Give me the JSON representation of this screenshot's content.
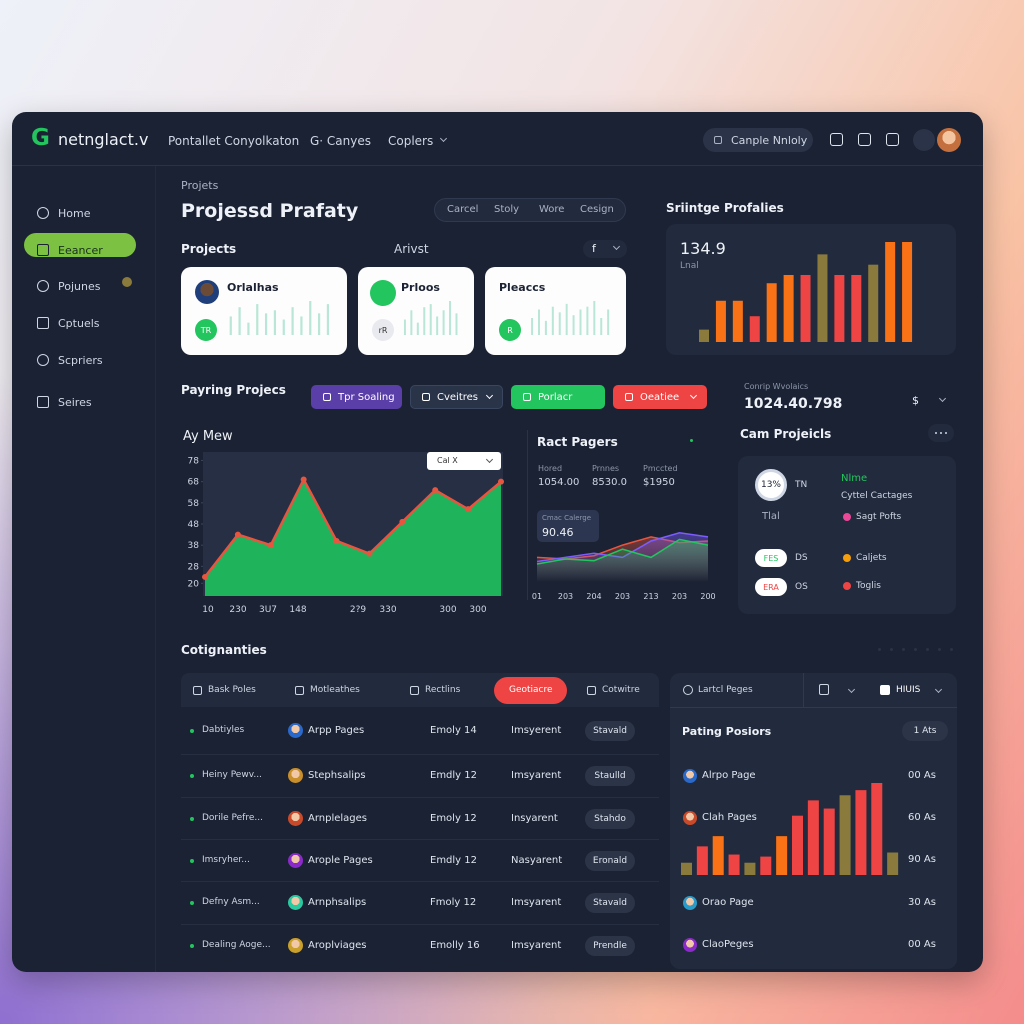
{
  "topbar": {
    "logo": "G",
    "brand": "netnglact.v",
    "nav": [
      "Pontallet Conyolkaton",
      "G· Canyes",
      "Coplers"
    ],
    "search": "Canple Nnloly"
  },
  "sidebar": [
    "Home",
    "Eeancer",
    "Pojunes",
    "Cptuels",
    "Scpriers",
    "Seires"
  ],
  "header": {
    "breadcrumb": "Projets",
    "title": "Projessd Prafaty",
    "tabs": [
      "Carcel",
      "Stoly",
      "Wore",
      "Cesign"
    ]
  },
  "projects": {
    "title": "Projects",
    "subtitle": "Arivst",
    "filter": "f",
    "cards": [
      {
        "name": "Orlalhas",
        "badge": "TR"
      },
      {
        "name": "Prloos",
        "badge": "rR"
      },
      {
        "name": "Pleaccs",
        "badge": "R"
      }
    ]
  },
  "spending": {
    "title": "Sriintge Profalies",
    "value": "134.9",
    "label": "Lnal"
  },
  "paying": {
    "title": "Payring Projecs",
    "buttons": [
      {
        "label": "Tpr Soaling",
        "color": "#5b3fa8"
      },
      {
        "label": "Cveitres",
        "color": "#2a3448"
      },
      {
        "label": "Porlacr",
        "color": "#22c55e"
      },
      {
        "label": "Oeatiee",
        "color": "#ef4444"
      }
    ]
  },
  "balance": {
    "label": "Conrip Wvolaics",
    "value": "1024.40.798",
    "currency": "$"
  },
  "cam": {
    "title": "Cam Projeicls",
    "ring": "13%",
    "ring_side": "TN",
    "small": "Tlal",
    "legend_title": "Nlme",
    "legend_sub": "Cyttel Cactages",
    "items": [
      {
        "label": "Sagt Pofts",
        "color": "#ec4899"
      },
      {
        "label": "Caljets",
        "color": "#f59e0b"
      },
      {
        "label": "Toglis",
        "color": "#ef4444"
      }
    ],
    "badges": [
      {
        "pill": "FES",
        "text": "DS",
        "color": "#22c55e"
      },
      {
        "pill": "ERA",
        "text": "OS",
        "color": "#ef4444"
      }
    ]
  },
  "table": {
    "title": "Cotignanties",
    "tabs": [
      "Bask Poles",
      "Motleathes",
      "Rectlins",
      "Geotiacre",
      "Cotwitre"
    ],
    "active_tab": 3,
    "rows": [
      [
        "Dabtiyles",
        "Arpp Pages",
        "Emoly 14",
        "Imsyerent",
        "Stavald"
      ],
      [
        "Heiny Pewv...",
        "Stephsalips",
        "Emdly 12",
        "Imsyarent",
        "Staulld"
      ],
      [
        "Dorile Pefre...",
        "Arnplelages",
        "Emoly 12",
        "Insyarent",
        "Stahdo"
      ],
      [
        "Imsryher...",
        "Arople Pages",
        "Emdly 12",
        "Nasyarent",
        "Eronald"
      ],
      [
        "Defny Asm...",
        "Arnphsalips",
        "Fmoly 12",
        "Imsyarent",
        "Stavald"
      ],
      [
        "Dealing Aoge...",
        "Aroplviages",
        "Emolly 16",
        "Imsyarent",
        "Prendle"
      ]
    ]
  },
  "pages": {
    "tab": "Lartcl Peges",
    "button": "HIUIS",
    "title": "Pating Posiors",
    "badge": "1 Ats",
    "items": [
      {
        "name": "Alrpo Page",
        "value": "00 As"
      },
      {
        "name": "Clah Pages",
        "value": "60 As"
      },
      {
        "value": "90 As"
      },
      {
        "name": "Orao Page",
        "value": "30 As"
      },
      {
        "name": "ClaoPeges",
        "value": "00 As"
      }
    ]
  },
  "chart_data": [
    {
      "type": "bar",
      "values": [
        6,
        9,
        4,
        10,
        7,
        8,
        5,
        9,
        6,
        11,
        7,
        10
      ],
      "color": "#b9e6d6"
    },
    {
      "type": "bar",
      "values": [
        5,
        8,
        4,
        9,
        10,
        6,
        8,
        11,
        7
      ],
      "color": "#b9e6d6"
    },
    {
      "type": "bar",
      "values": [
        6,
        9,
        5,
        10,
        8,
        11,
        7,
        9,
        10,
        12,
        6,
        9
      ],
      "color": "#b9e6d6"
    },
    {
      "type": "bar",
      "values": [
        12,
        40,
        40,
        25,
        57,
        65,
        65,
        85,
        65,
        65,
        75,
        97,
        97
      ],
      "colors": [
        "#8a7a3c",
        "#f97316",
        "#f97316",
        "#ef4444",
        "#f97316",
        "#f97316",
        "#ef4444",
        "#8a7a3c",
        "#ef4444",
        "#ef4444",
        "#8a7a3c",
        "#f97316",
        "#f97316"
      ]
    },
    {
      "type": "line",
      "title": "Ay Mew",
      "dropdown": "Cal X",
      "categories": [
        "10",
        "230",
        "3U7",
        "148",
        null,
        "2?9",
        "330",
        null,
        "300",
        "300"
      ],
      "values": [
        23,
        43,
        38,
        69,
        40,
        34,
        49,
        64,
        55,
        68
      ],
      "ylim": [
        14,
        82
      ],
      "yticks": [
        78,
        68,
        58,
        48,
        38,
        28,
        20
      ],
      "color": "#e8553f",
      "fill": "#1fb45c"
    },
    {
      "type": "area",
      "title": "Ract Pagers",
      "stats": [
        {
          "label": "Hored",
          "value": "1054.00"
        },
        {
          "label": "Prnnes",
          "value": "8530.0"
        },
        {
          "label": "Pmccted",
          "value": "$1950"
        }
      ],
      "tooltip": {
        "label": "Cmac Calerge",
        "value": "90.46"
      },
      "categories": [
        "01",
        "203",
        "204",
        "203",
        "213",
        "203",
        "200"
      ],
      "series": [
        {
          "color": "#e8553f",
          "values": [
            30,
            28,
            32,
            45,
            55,
            48,
            50
          ]
        },
        {
          "color": "#7c5cff",
          "values": [
            25,
            30,
            35,
            30,
            50,
            60,
            55
          ]
        },
        {
          "color": "#22c55e",
          "values": [
            22,
            28,
            26,
            40,
            30,
            52,
            45
          ]
        }
      ],
      "ylim": [
        0,
        100
      ]
    },
    {
      "type": "bar",
      "values": [
        12,
        28,
        38,
        20,
        12,
        18,
        38,
        58,
        73,
        65,
        78,
        83,
        90,
        22
      ],
      "colors": [
        "#8a7a3c",
        "#ef4444",
        "#f97316",
        "#ef4444",
        "#8a7a3c",
        "#ef4444",
        "#f97316",
        "#ef4444",
        "#ef4444",
        "#ef4444",
        "#8a7a3c",
        "#ef4444",
        "#ef4444",
        "#8a7a3c"
      ]
    }
  ]
}
